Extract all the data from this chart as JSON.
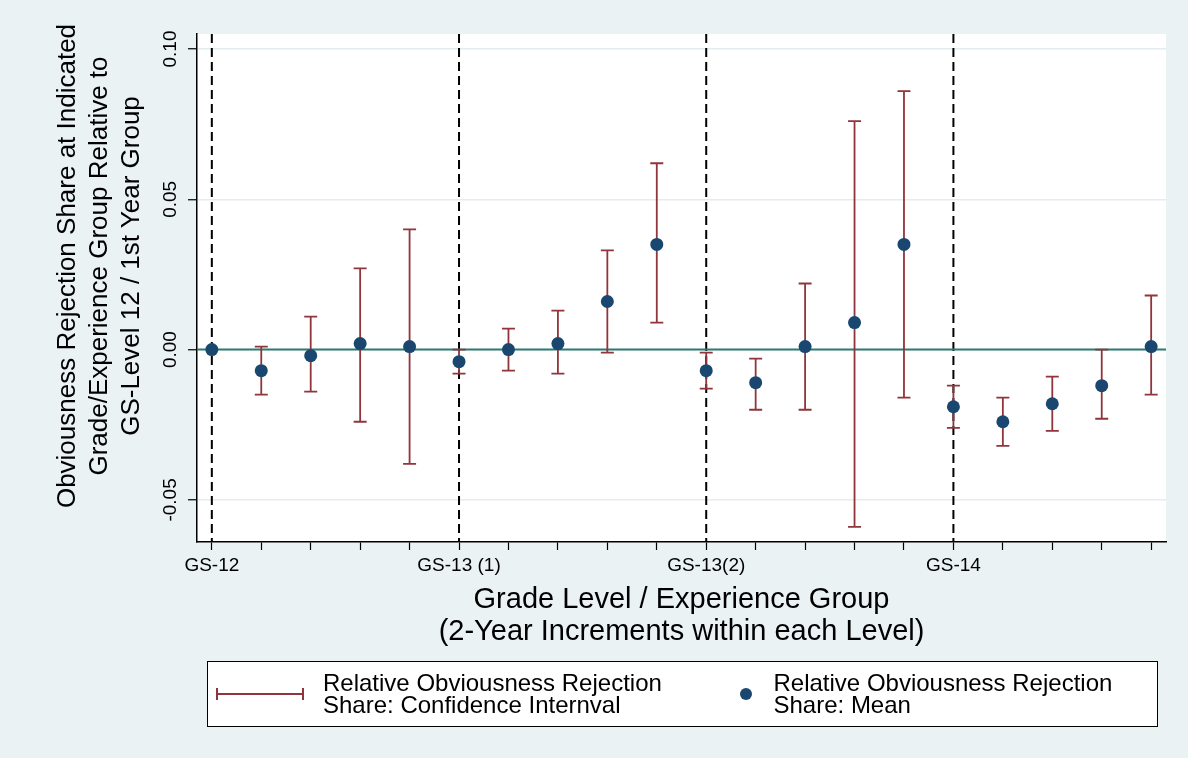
{
  "chart_data": {
    "type": "scatter",
    "xlabel": "Grade Level / Experience Group\n(2-Year Increments within each Level)",
    "ylabel": "Obviousness Rejection Share at Indicated\nGrade/Experience Group Relative to\nGS-Level 12 / 1st Year Group",
    "categories": [
      "GS-12",
      null,
      null,
      null,
      null,
      "GS-13 (1)",
      null,
      null,
      null,
      null,
      "GS-13(2)",
      null,
      null,
      null,
      null,
      "GS-14",
      null,
      null,
      null,
      null
    ],
    "series": [
      {
        "name": "Relative Obviousness Rejection Share: Mean",
        "color": "#1a476f",
        "marker": "circle",
        "values": [
          0,
          -0.007,
          -0.002,
          0.002,
          0.001,
          -0.004,
          0,
          0.002,
          0.016,
          0.035,
          -0.007,
          -0.011,
          0.001,
          0.009,
          0.035,
          -0.019,
          -0.024,
          -0.018,
          -0.012,
          0.001
        ],
        "errors": [
          null,
          [
            -0.015,
            0.001
          ],
          [
            -0.014,
            0.011
          ],
          [
            -0.024,
            0.027
          ],
          [
            -0.038,
            0.04
          ],
          [
            -0.008,
            0
          ],
          [
            -0.007,
            0.007
          ],
          [
            -0.008,
            0.013
          ],
          [
            -0.001,
            0.033
          ],
          [
            0.009,
            0.062
          ],
          [
            -0.013,
            -0.001
          ],
          [
            -0.02,
            -0.003
          ],
          [
            -0.02,
            0.022
          ],
          [
            -0.059,
            0.076
          ],
          [
            -0.016,
            0.086
          ],
          [
            -0.026,
            -0.012
          ],
          [
            -0.032,
            -0.016
          ],
          [
            -0.027,
            -0.009
          ],
          [
            -0.023,
            0
          ],
          [
            -0.015,
            0.018
          ]
        ]
      }
    ],
    "annotations": [
      "Relative Obviousness Rejection Share: Confidence Internval"
    ],
    "ylim": [
      -0.064,
      0.105
    ],
    "yticks": [
      -0.05,
      {
        "value": 0,
        "label": "0.00"
      },
      0.05,
      {
        "value": 0.1,
        "label": "0.10"
      }
    ],
    "ref_lines": [
      {
        "axis": "x",
        "value": "GS-12",
        "color": "#000000",
        "line_style": "dashed"
      },
      {
        "axis": "x",
        "value": "GS-13 (1)",
        "color": "#000000",
        "line_style": "dashed"
      },
      {
        "axis": "x",
        "value": "GS-13(2)",
        "color": "#000000",
        "line_style": "dashed"
      },
      {
        "axis": "x",
        "value": "GS-14",
        "color": "#000000",
        "line_style": "dashed"
      },
      {
        "axis": "y",
        "value": 0,
        "color": "#2f7a70",
        "line_style": "solid"
      }
    ],
    "grid": "y",
    "legend": "bottom"
  }
}
